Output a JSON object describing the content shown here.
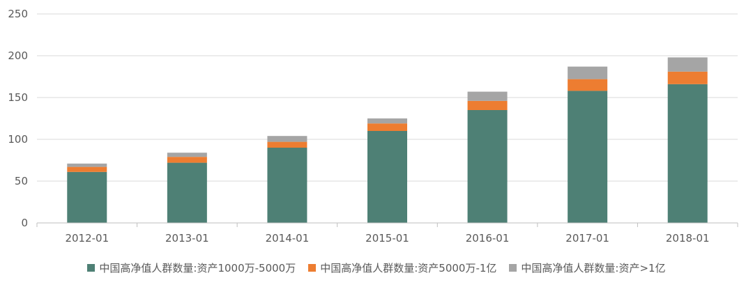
{
  "chart_data": {
    "type": "bar",
    "stacked": true,
    "categories": [
      "2012-01",
      "2013-01",
      "2014-01",
      "2015-01",
      "2016-01",
      "2017-01",
      "2018-01"
    ],
    "series": [
      {
        "name": "中国高净值人群数量:资产1000万-5000万",
        "color": "#4E8075",
        "values": [
          61,
          72,
          90,
          110,
          135,
          158,
          166
        ]
      },
      {
        "name": "中国高净值人群数量:资产5000万-1亿",
        "color": "#ED7D31",
        "values": [
          6,
          7,
          7,
          9,
          11,
          14,
          15
        ]
      },
      {
        "name": "中国高净值人群数量:资产>1亿",
        "color": "#A5A5A5",
        "values": [
          4,
          5,
          7,
          6,
          11,
          15,
          17
        ]
      }
    ],
    "ylim": [
      0,
      250
    ],
    "yticks": [
      0,
      50,
      100,
      150,
      200,
      250
    ],
    "grid": true,
    "legend_position": "bottom"
  }
}
